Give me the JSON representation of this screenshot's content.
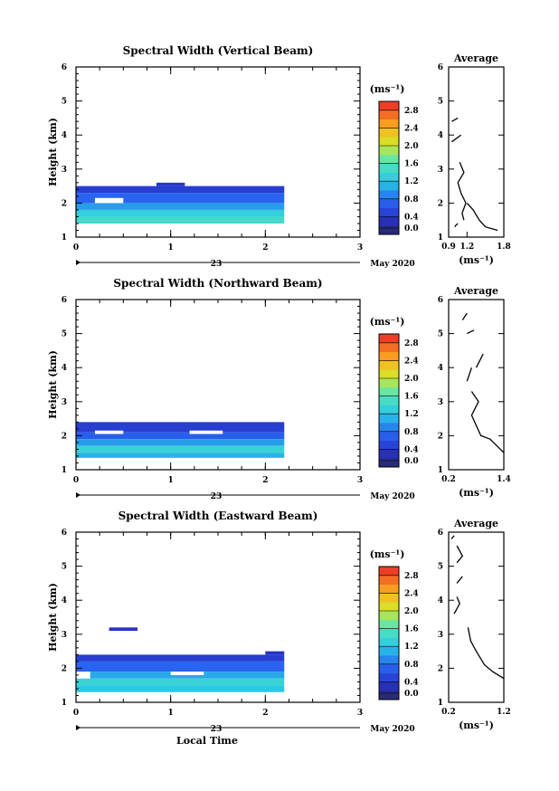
{
  "chart_data": [
    {
      "type": "heatmap",
      "title": "Spectral Width (Vertical Beam)",
      "xlabel": "",
      "ylabel": "Height (km)",
      "xlim": [
        0,
        3
      ],
      "ylim": [
        1,
        6
      ],
      "xticks": [
        "0",
        "1",
        "2",
        "3"
      ],
      "yticks": [
        "1",
        "2",
        "3",
        "4",
        "5",
        "6"
      ],
      "date_day": "23",
      "date_label": "May 2020",
      "colorbar": {
        "unit": "(ms⁻¹)",
        "range": [
          0,
          3.0
        ],
        "ticks": [
          "0.0",
          "0.4",
          "0.8",
          "1.2",
          "1.6",
          "2.0",
          "2.4",
          "2.8"
        ]
      },
      "cells": [
        {
          "x": [
            0.0,
            2.2
          ],
          "y": [
            2.3,
            2.5
          ],
          "value": 0.45
        },
        {
          "x": [
            0.85,
            1.15
          ],
          "y": [
            2.5,
            2.6
          ],
          "value": 0.4
        },
        {
          "x": [
            0.0,
            2.2
          ],
          "y": [
            2.0,
            2.3
          ],
          "value": 0.75
        },
        {
          "x": [
            0.0,
            2.2
          ],
          "y": [
            1.8,
            2.0
          ],
          "value": 1.0
        },
        {
          "x": [
            0.0,
            2.2
          ],
          "y": [
            1.6,
            1.8
          ],
          "value": 1.3
        },
        {
          "x": [
            0.0,
            2.2
          ],
          "y": [
            1.4,
            1.6
          ],
          "value": 1.45
        }
      ],
      "gaps": [
        {
          "x": [
            0.2,
            0.5
          ],
          "y": [
            2.0,
            2.15
          ]
        }
      ],
      "average": {
        "title": "Average",
        "xlabel": "(ms⁻¹)",
        "xlim": [
          0.9,
          1.8
        ],
        "xticks": [
          "0.9",
          "1.2",
          "1.8"
        ],
        "yticks": [
          "1",
          "2",
          "3",
          "4",
          "5",
          "6"
        ],
        "ylim": [
          1,
          6
        ],
        "segments": [
          [
            [
              1.0,
              1.3
            ],
            [
              1.02,
              1.35
            ],
            [
              1.05,
              1.4
            ]
          ],
          [
            [
              1.15,
              1.5
            ],
            [
              1.12,
              1.7
            ],
            [
              1.18,
              2.0
            ],
            [
              1.1,
              2.3
            ],
            [
              1.05,
              2.6
            ],
            [
              1.15,
              2.9
            ],
            [
              1.08,
              3.2
            ]
          ],
          [
            [
              1.7,
              1.2
            ],
            [
              1.5,
              1.3
            ],
            [
              1.4,
              1.5
            ],
            [
              1.3,
              1.8
            ],
            [
              1.2,
              2.0
            ]
          ],
          [
            [
              0.95,
              3.8
            ],
            [
              1.1,
              4.0
            ]
          ],
          [
            [
              0.95,
              4.4
            ],
            [
              1.05,
              4.5
            ]
          ]
        ]
      }
    },
    {
      "type": "heatmap",
      "title": "Spectral Width (Northward Beam)",
      "xlabel": "",
      "ylabel": "Height (km)",
      "xlim": [
        0,
        3
      ],
      "ylim": [
        1,
        6
      ],
      "xticks": [
        "0",
        "1",
        "2",
        "3"
      ],
      "yticks": [
        "1",
        "2",
        "3",
        "4",
        "5",
        "6"
      ],
      "date_day": "23",
      "date_label": "May 2020",
      "colorbar": {
        "unit": "(ms⁻¹)",
        "range": [
          0,
          3.0
        ],
        "ticks": [
          "0.0",
          "0.4",
          "0.8",
          "1.2",
          "1.6",
          "2.0",
          "2.4",
          "2.8"
        ]
      },
      "cells": [
        {
          "x": [
            0.0,
            2.2
          ],
          "y": [
            2.1,
            2.4
          ],
          "value": 0.45
        },
        {
          "x": [
            0.0,
            2.2
          ],
          "y": [
            1.9,
            2.1
          ],
          "value": 0.7
        },
        {
          "x": [
            0.0,
            2.2
          ],
          "y": [
            1.7,
            1.9
          ],
          "value": 1.0
        },
        {
          "x": [
            0.0,
            2.2
          ],
          "y": [
            1.5,
            1.7
          ],
          "value": 1.35
        },
        {
          "x": [
            0.0,
            2.2
          ],
          "y": [
            1.35,
            1.5
          ],
          "value": 1.1
        }
      ],
      "gaps": [
        {
          "x": [
            0.2,
            0.5
          ],
          "y": [
            2.05,
            2.15
          ]
        },
        {
          "x": [
            1.2,
            1.55
          ],
          "y": [
            2.05,
            2.15
          ]
        }
      ],
      "average": {
        "title": "Average",
        "xlabel": "(ms⁻¹)",
        "xlim": [
          0.2,
          1.4
        ],
        "xticks": [
          "0.2",
          "1.4"
        ],
        "yticks": [
          "1",
          "2",
          "3",
          "4",
          "5",
          "6"
        ],
        "ylim": [
          1,
          6
        ],
        "segments": [
          [
            [
              1.4,
              1.5
            ],
            [
              1.25,
              1.7
            ],
            [
              1.1,
              1.9
            ],
            [
              0.9,
              2.0
            ],
            [
              0.8,
              2.3
            ],
            [
              0.7,
              2.6
            ],
            [
              0.85,
              3.0
            ],
            [
              0.7,
              3.3
            ]
          ],
          [
            [
              0.6,
              3.6
            ],
            [
              0.7,
              4.0
            ]
          ],
          [
            [
              0.8,
              4.0
            ],
            [
              0.95,
              4.4
            ]
          ],
          [
            [
              0.6,
              5.0
            ],
            [
              0.75,
              5.1
            ]
          ],
          [
            [
              0.5,
              5.4
            ],
            [
              0.6,
              5.6
            ]
          ]
        ]
      }
    },
    {
      "type": "heatmap",
      "title": "Spectral Width (Eastward Beam)",
      "xlabel": "Local Time",
      "ylabel": "Height (km)",
      "xlim": [
        0,
        3
      ],
      "ylim": [
        1,
        6
      ],
      "xticks": [
        "0",
        "1",
        "2",
        "3"
      ],
      "yticks": [
        "1",
        "2",
        "3",
        "4",
        "5",
        "6"
      ],
      "date_day": "23",
      "date_label": "May 2020",
      "colorbar": {
        "unit": "(ms⁻¹)",
        "range": [
          0,
          3.0
        ],
        "ticks": [
          "0.0",
          "0.4",
          "0.8",
          "1.2",
          "1.6",
          "2.0",
          "2.4",
          "2.8"
        ]
      },
      "cells": [
        {
          "x": [
            0.35,
            0.65
          ],
          "y": [
            3.1,
            3.2
          ],
          "value": 0.35
        },
        {
          "x": [
            0.0,
            2.2
          ],
          "y": [
            2.2,
            2.4
          ],
          "value": 0.45
        },
        {
          "x": [
            2.0,
            2.2
          ],
          "y": [
            2.4,
            2.5
          ],
          "value": 0.35
        },
        {
          "x": [
            0.0,
            2.2
          ],
          "y": [
            1.9,
            2.2
          ],
          "value": 0.75
        },
        {
          "x": [
            0.0,
            2.2
          ],
          "y": [
            1.7,
            1.9
          ],
          "value": 1.05
        },
        {
          "x": [
            0.0,
            2.2
          ],
          "y": [
            1.5,
            1.7
          ],
          "value": 1.35
        },
        {
          "x": [
            0.0,
            2.2
          ],
          "y": [
            1.3,
            1.5
          ],
          "value": 1.2
        }
      ],
      "gaps": [
        {
          "x": [
            0.0,
            0.15
          ],
          "y": [
            1.7,
            1.9
          ]
        },
        {
          "x": [
            1.0,
            1.35
          ],
          "y": [
            1.8,
            1.9
          ]
        }
      ],
      "average": {
        "title": "Average",
        "xlabel": "(ms⁻¹)",
        "xlim": [
          0.2,
          1.2
        ],
        "xticks": [
          "0.2",
          "1.2"
        ],
        "yticks": [
          "1",
          "2",
          "3",
          "4",
          "5",
          "6"
        ],
        "ylim": [
          1,
          6
        ],
        "segments": [
          [
            [
              1.2,
              1.7
            ],
            [
              1.0,
              1.9
            ],
            [
              0.85,
              2.1
            ],
            [
              0.7,
              2.5
            ],
            [
              0.6,
              2.8
            ],
            [
              0.55,
              3.2
            ]
          ],
          [
            [
              0.3,
              3.6
            ],
            [
              0.4,
              3.9
            ],
            [
              0.35,
              4.1
            ]
          ],
          [
            [
              0.35,
              4.5
            ],
            [
              0.45,
              4.7
            ]
          ],
          [
            [
              0.35,
              5.1
            ],
            [
              0.45,
              5.3
            ],
            [
              0.35,
              5.6
            ]
          ],
          [
            [
              0.25,
              5.8
            ],
            [
              0.3,
              5.9
            ]
          ]
        ]
      }
    }
  ]
}
